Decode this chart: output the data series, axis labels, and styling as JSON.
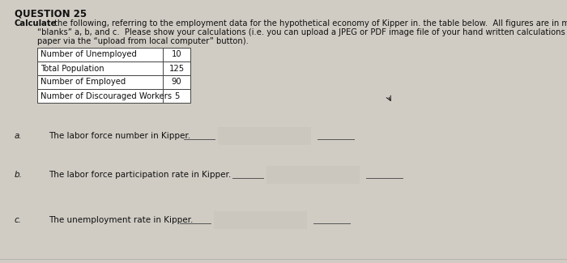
{
  "title": "QUESTION 25",
  "bg_color": "#d0ccc4",
  "text_color": "#111111",
  "title_fontsize": 8.5,
  "body_fontsize": 7.2,
  "table_fontsize": 7.2,
  "item_fontsize": 7.5,
  "table_rows": [
    [
      "Number of Unemployed",
      "10"
    ],
    [
      "Total Population",
      "125"
    ],
    [
      "Number of Employed",
      "90"
    ],
    [
      "Number of Discouraged Workers",
      "5"
    ]
  ],
  "intro_line1": " the following, referring to the employment data for the hypothetical economy of Kipper in. the table below.  All figures are in millions.  Fill in the",
  "intro_line2": "“blanks” a, b, and c.  Please show your calculations (i.e. you can upload a JPEG or PDF image file of your hand written calculations on a piece of scratch",
  "intro_line3": "paper via the “upload from local computer” button).",
  "items": [
    {
      "label": "a.",
      "text": "The labor force number in Kipper."
    },
    {
      "label": "b.",
      "text": "The labor force participation rate in Kipper."
    },
    {
      "label": "c.",
      "text": "The unemployment rate in Kipper."
    }
  ]
}
